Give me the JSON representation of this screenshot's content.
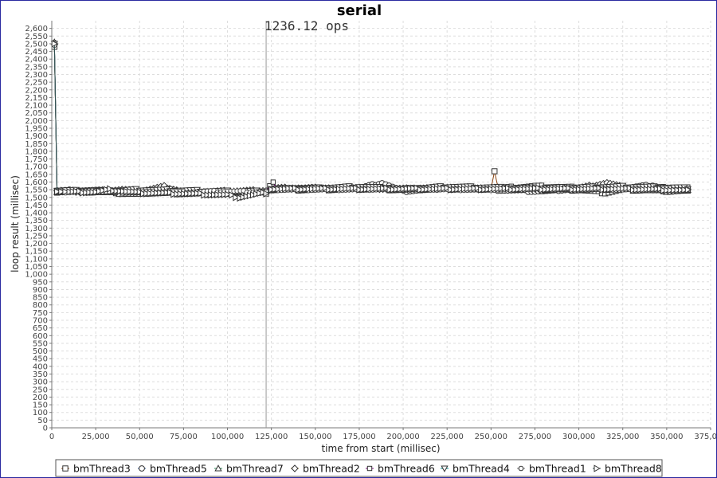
{
  "chart_data": {
    "type": "line",
    "title": "serial",
    "annotation": "1236.12 ops",
    "marker_line_x": 122000,
    "xlabel": "time from start (millisec)",
    "ylabel": "loop result (millisec)",
    "xlim": [
      0,
      375000
    ],
    "ylim": [
      0,
      2650
    ],
    "x_ticks": [
      "0",
      "25,000",
      "50,000",
      "75,000",
      "100,000",
      "125,000",
      "150,000",
      "175,000",
      "200,000",
      "225,000",
      "250,000",
      "275,000",
      "300,000",
      "325,000",
      "350,000",
      "375,000"
    ],
    "y_ticks": [
      "0",
      "50",
      "100",
      "150",
      "200",
      "250",
      "300",
      "350",
      "400",
      "450",
      "500",
      "550",
      "600",
      "650",
      "700",
      "750",
      "800",
      "850",
      "900",
      "950",
      "1,000",
      "1,050",
      "1,100",
      "1,150",
      "1,200",
      "1,250",
      "1,300",
      "1,350",
      "1,400",
      "1,450",
      "1,500",
      "1,550",
      "1,600",
      "1,650",
      "1,700",
      "1,750",
      "1,800",
      "1,850",
      "1,900",
      "1,950",
      "2,000",
      "2,050",
      "2,100",
      "2,150",
      "2,200",
      "2,250",
      "2,300",
      "2,350",
      "2,400",
      "2,450",
      "2,500",
      "2,550",
      "2,600"
    ],
    "grid": true,
    "legend_position": "bottom",
    "series": [
      {
        "name": "bmThread3",
        "marker": "square",
        "color": "#8b4513",
        "points": [
          [
            1500,
            2480
          ],
          [
            3000,
            1535
          ],
          [
            10000,
            1540
          ],
          [
            25000,
            1535
          ],
          [
            50000,
            1530
          ],
          [
            75000,
            1525
          ],
          [
            100000,
            1520
          ],
          [
            122000,
            1530
          ],
          [
            125000,
            1550
          ],
          [
            150000,
            1550
          ],
          [
            175000,
            1555
          ],
          [
            200000,
            1550
          ],
          [
            225000,
            1555
          ],
          [
            250000,
            1555
          ],
          [
            252000,
            1670
          ],
          [
            254000,
            1560
          ],
          [
            275000,
            1545
          ],
          [
            300000,
            1550
          ],
          [
            315000,
            1530
          ],
          [
            325000,
            1550
          ],
          [
            350000,
            1545
          ],
          [
            362000,
            1540
          ]
        ]
      },
      {
        "name": "bmThread5",
        "marker": "circle",
        "color": "#2b5797",
        "points": [
          [
            1500,
            2505
          ],
          [
            3000,
            1540
          ],
          [
            10000,
            1545
          ],
          [
            25000,
            1545
          ],
          [
            50000,
            1535
          ],
          [
            75000,
            1535
          ],
          [
            100000,
            1530
          ],
          [
            122000,
            1535
          ],
          [
            125000,
            1555
          ],
          [
            150000,
            1560
          ],
          [
            175000,
            1560
          ],
          [
            188000,
            1595
          ],
          [
            200000,
            1540
          ],
          [
            225000,
            1560
          ],
          [
            250000,
            1550
          ],
          [
            275000,
            1540
          ],
          [
            300000,
            1555
          ],
          [
            325000,
            1560
          ],
          [
            342000,
            1580
          ],
          [
            350000,
            1555
          ],
          [
            362000,
            1560
          ]
        ]
      },
      {
        "name": "bmThread7",
        "marker": "triangle-up",
        "color": "#2e8b57",
        "points": [
          [
            1500,
            2510
          ],
          [
            3000,
            1540
          ],
          [
            10000,
            1540
          ],
          [
            25000,
            1535
          ],
          [
            50000,
            1520
          ],
          [
            65000,
            1560
          ],
          [
            75000,
            1530
          ],
          [
            100000,
            1535
          ],
          [
            122000,
            1540
          ],
          [
            125000,
            1555
          ],
          [
            150000,
            1555
          ],
          [
            175000,
            1560
          ],
          [
            200000,
            1550
          ],
          [
            225000,
            1560
          ],
          [
            250000,
            1555
          ],
          [
            275000,
            1555
          ],
          [
            300000,
            1550
          ],
          [
            325000,
            1555
          ],
          [
            350000,
            1540
          ],
          [
            362000,
            1545
          ]
        ]
      },
      {
        "name": "bmThread2",
        "marker": "diamond",
        "color": "#b8860b",
        "points": [
          [
            1500,
            2495
          ],
          [
            3000,
            1545
          ],
          [
            10000,
            1540
          ],
          [
            25000,
            1540
          ],
          [
            40000,
            1550
          ],
          [
            50000,
            1540
          ],
          [
            64000,
            1570
          ],
          [
            75000,
            1535
          ],
          [
            100000,
            1540
          ],
          [
            122000,
            1545
          ],
          [
            125000,
            1560
          ],
          [
            150000,
            1560
          ],
          [
            175000,
            1560
          ],
          [
            200000,
            1555
          ],
          [
            225000,
            1565
          ],
          [
            250000,
            1560
          ],
          [
            275000,
            1560
          ],
          [
            300000,
            1560
          ],
          [
            316000,
            1595
          ],
          [
            325000,
            1565
          ],
          [
            350000,
            1550
          ],
          [
            362000,
            1555
          ]
        ]
      },
      {
        "name": "bmThread6",
        "marker": "square-small",
        "color": "#800080",
        "points": [
          [
            1500,
            2500
          ],
          [
            3000,
            1540
          ],
          [
            10000,
            1545
          ],
          [
            25000,
            1540
          ],
          [
            50000,
            1530
          ],
          [
            75000,
            1540
          ],
          [
            100000,
            1530
          ],
          [
            122000,
            1535
          ],
          [
            126000,
            1605
          ],
          [
            128000,
            1555
          ],
          [
            150000,
            1560
          ],
          [
            175000,
            1555
          ],
          [
            200000,
            1560
          ],
          [
            225000,
            1555
          ],
          [
            250000,
            1560
          ],
          [
            275000,
            1575
          ],
          [
            300000,
            1565
          ],
          [
            325000,
            1560
          ],
          [
            350000,
            1565
          ],
          [
            362000,
            1565
          ]
        ]
      },
      {
        "name": "bmThread4",
        "marker": "triangle-down",
        "color": "#008b8b",
        "points": [
          [
            1500,
            2500
          ],
          [
            3000,
            1545
          ],
          [
            10000,
            1545
          ],
          [
            25000,
            1540
          ],
          [
            50000,
            1550
          ],
          [
            75000,
            1545
          ],
          [
            100000,
            1540
          ],
          [
            122000,
            1540
          ],
          [
            125000,
            1555
          ],
          [
            150000,
            1560
          ],
          [
            175000,
            1570
          ],
          [
            200000,
            1555
          ],
          [
            225000,
            1570
          ],
          [
            250000,
            1565
          ],
          [
            275000,
            1560
          ],
          [
            300000,
            1565
          ],
          [
            325000,
            1570
          ],
          [
            350000,
            1565
          ],
          [
            362000,
            1560
          ]
        ]
      },
      {
        "name": "bmThread1",
        "marker": "circle-small",
        "color": "#777777",
        "points": [
          [
            1500,
            2490
          ],
          [
            3000,
            1535
          ],
          [
            10000,
            1535
          ],
          [
            25000,
            1540
          ],
          [
            50000,
            1535
          ],
          [
            75000,
            1535
          ],
          [
            100000,
            1540
          ],
          [
            122000,
            1535
          ],
          [
            125000,
            1550
          ],
          [
            150000,
            1550
          ],
          [
            175000,
            1550
          ],
          [
            200000,
            1555
          ],
          [
            225000,
            1550
          ],
          [
            250000,
            1550
          ],
          [
            275000,
            1555
          ],
          [
            300000,
            1555
          ],
          [
            325000,
            1550
          ],
          [
            350000,
            1555
          ],
          [
            362000,
            1550
          ]
        ]
      },
      {
        "name": "bmThread8",
        "marker": "triangle-right",
        "color": "#2f4f4f",
        "points": [
          [
            1500,
            2500
          ],
          [
            3000,
            1540
          ],
          [
            10000,
            1535
          ],
          [
            25000,
            1535
          ],
          [
            33000,
            1550
          ],
          [
            50000,
            1530
          ],
          [
            75000,
            1525
          ],
          [
            100000,
            1515
          ],
          [
            107000,
            1500
          ],
          [
            122000,
            1530
          ],
          [
            125000,
            1555
          ],
          [
            150000,
            1555
          ],
          [
            175000,
            1555
          ],
          [
            200000,
            1555
          ],
          [
            225000,
            1555
          ],
          [
            250000,
            1555
          ],
          [
            275000,
            1555
          ],
          [
            300000,
            1555
          ],
          [
            325000,
            1555
          ],
          [
            350000,
            1550
          ],
          [
            362000,
            1545
          ]
        ]
      }
    ]
  }
}
